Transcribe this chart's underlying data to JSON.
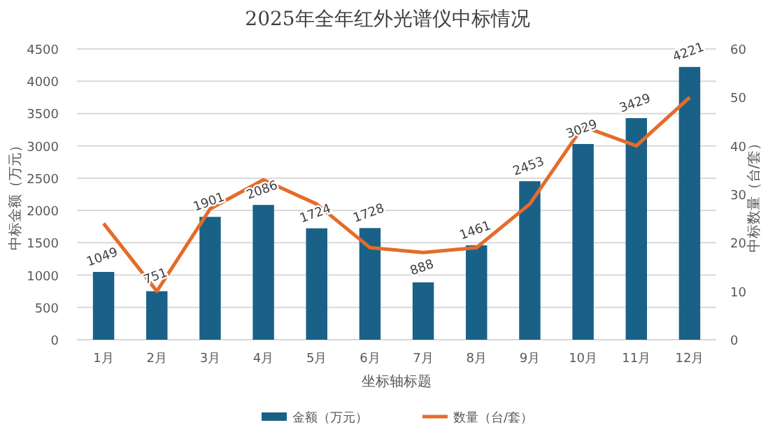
{
  "chart_data": {
    "type": "bar",
    "title": "2025年全年红外光谱仪中标情况",
    "xlabel": "坐标轴标题",
    "ylabel": "中标金额（万元）",
    "y2label": "中标数量（台/套）",
    "categories": [
      "1月",
      "2月",
      "3月",
      "4月",
      "5月",
      "6月",
      "7月",
      "8月",
      "9月",
      "10月",
      "11月",
      "12月"
    ],
    "series": [
      {
        "name": "金额（万元）",
        "color": "#1a6188",
        "values": [
          1049,
          751,
          1901,
          2086,
          1724,
          1728,
          888,
          1461,
          2453,
          3029,
          3429,
          4221
        ],
        "value_labels": [
          "1049",
          "751",
          "1901",
          "2086",
          "1724",
          "1728",
          "888",
          "1461",
          "2453",
          "3029",
          "3429",
          "4221"
        ]
      },
      {
        "name": "数量（台/套）",
        "type": "line",
        "axis": "y2",
        "color": "#e46c2a",
        "values": [
          24,
          10,
          27,
          33,
          28,
          19,
          18,
          19,
          28,
          44,
          40,
          50
        ]
      }
    ],
    "ylim": [
      0,
      4500
    ],
    "yticks": [
      0,
      500,
      1000,
      1500,
      2000,
      2500,
      3000,
      3500,
      4000,
      4500
    ],
    "y2lim": [
      0,
      60
    ],
    "y2ticks": [
      0,
      10,
      20,
      30,
      40,
      50,
      60
    ],
    "grid": "y",
    "legend": "bottom",
    "marker": "none",
    "line_style": "solid"
  }
}
